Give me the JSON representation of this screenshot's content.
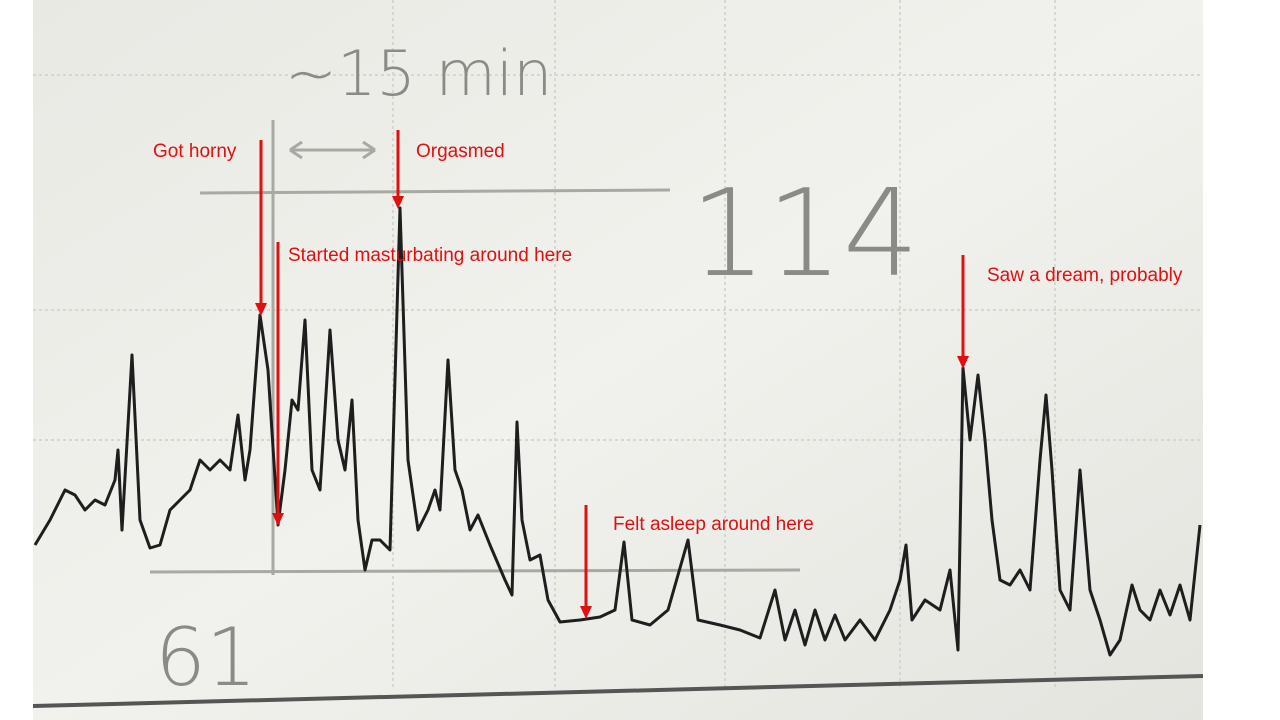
{
  "handwritten": {
    "duration": "~15 min",
    "max": "114",
    "min": "61"
  },
  "annotations": [
    {
      "text": "Got horny"
    },
    {
      "text": "Orgasmed"
    },
    {
      "text": "Started masturbating around here"
    },
    {
      "text": "Felt asleep around here"
    },
    {
      "text": "Saw a dream, probably"
    }
  ]
}
